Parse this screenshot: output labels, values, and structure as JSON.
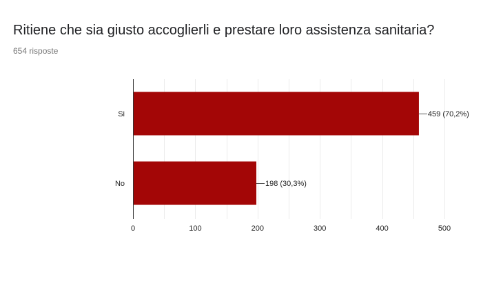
{
  "question": {
    "title": "Ritiene che sia giusto accoglierli e prestare loro assistenza sanitaria?",
    "responses": "654 risposte"
  },
  "colors": {
    "bar": "#a30606",
    "grid": "#ebebeb",
    "axis": "#333333"
  },
  "chart_data": {
    "type": "bar",
    "orientation": "horizontal",
    "categories": [
      "Si",
      "No"
    ],
    "values": [
      459,
      198
    ],
    "data_labels": [
      "459 (70,2%)",
      "198 (30,3%)"
    ],
    "xlim": [
      0,
      500
    ],
    "xticks": [
      0,
      100,
      200,
      300,
      400,
      500
    ],
    "grid": true,
    "legend": "none",
    "title": "",
    "xlabel": "",
    "ylabel": ""
  }
}
